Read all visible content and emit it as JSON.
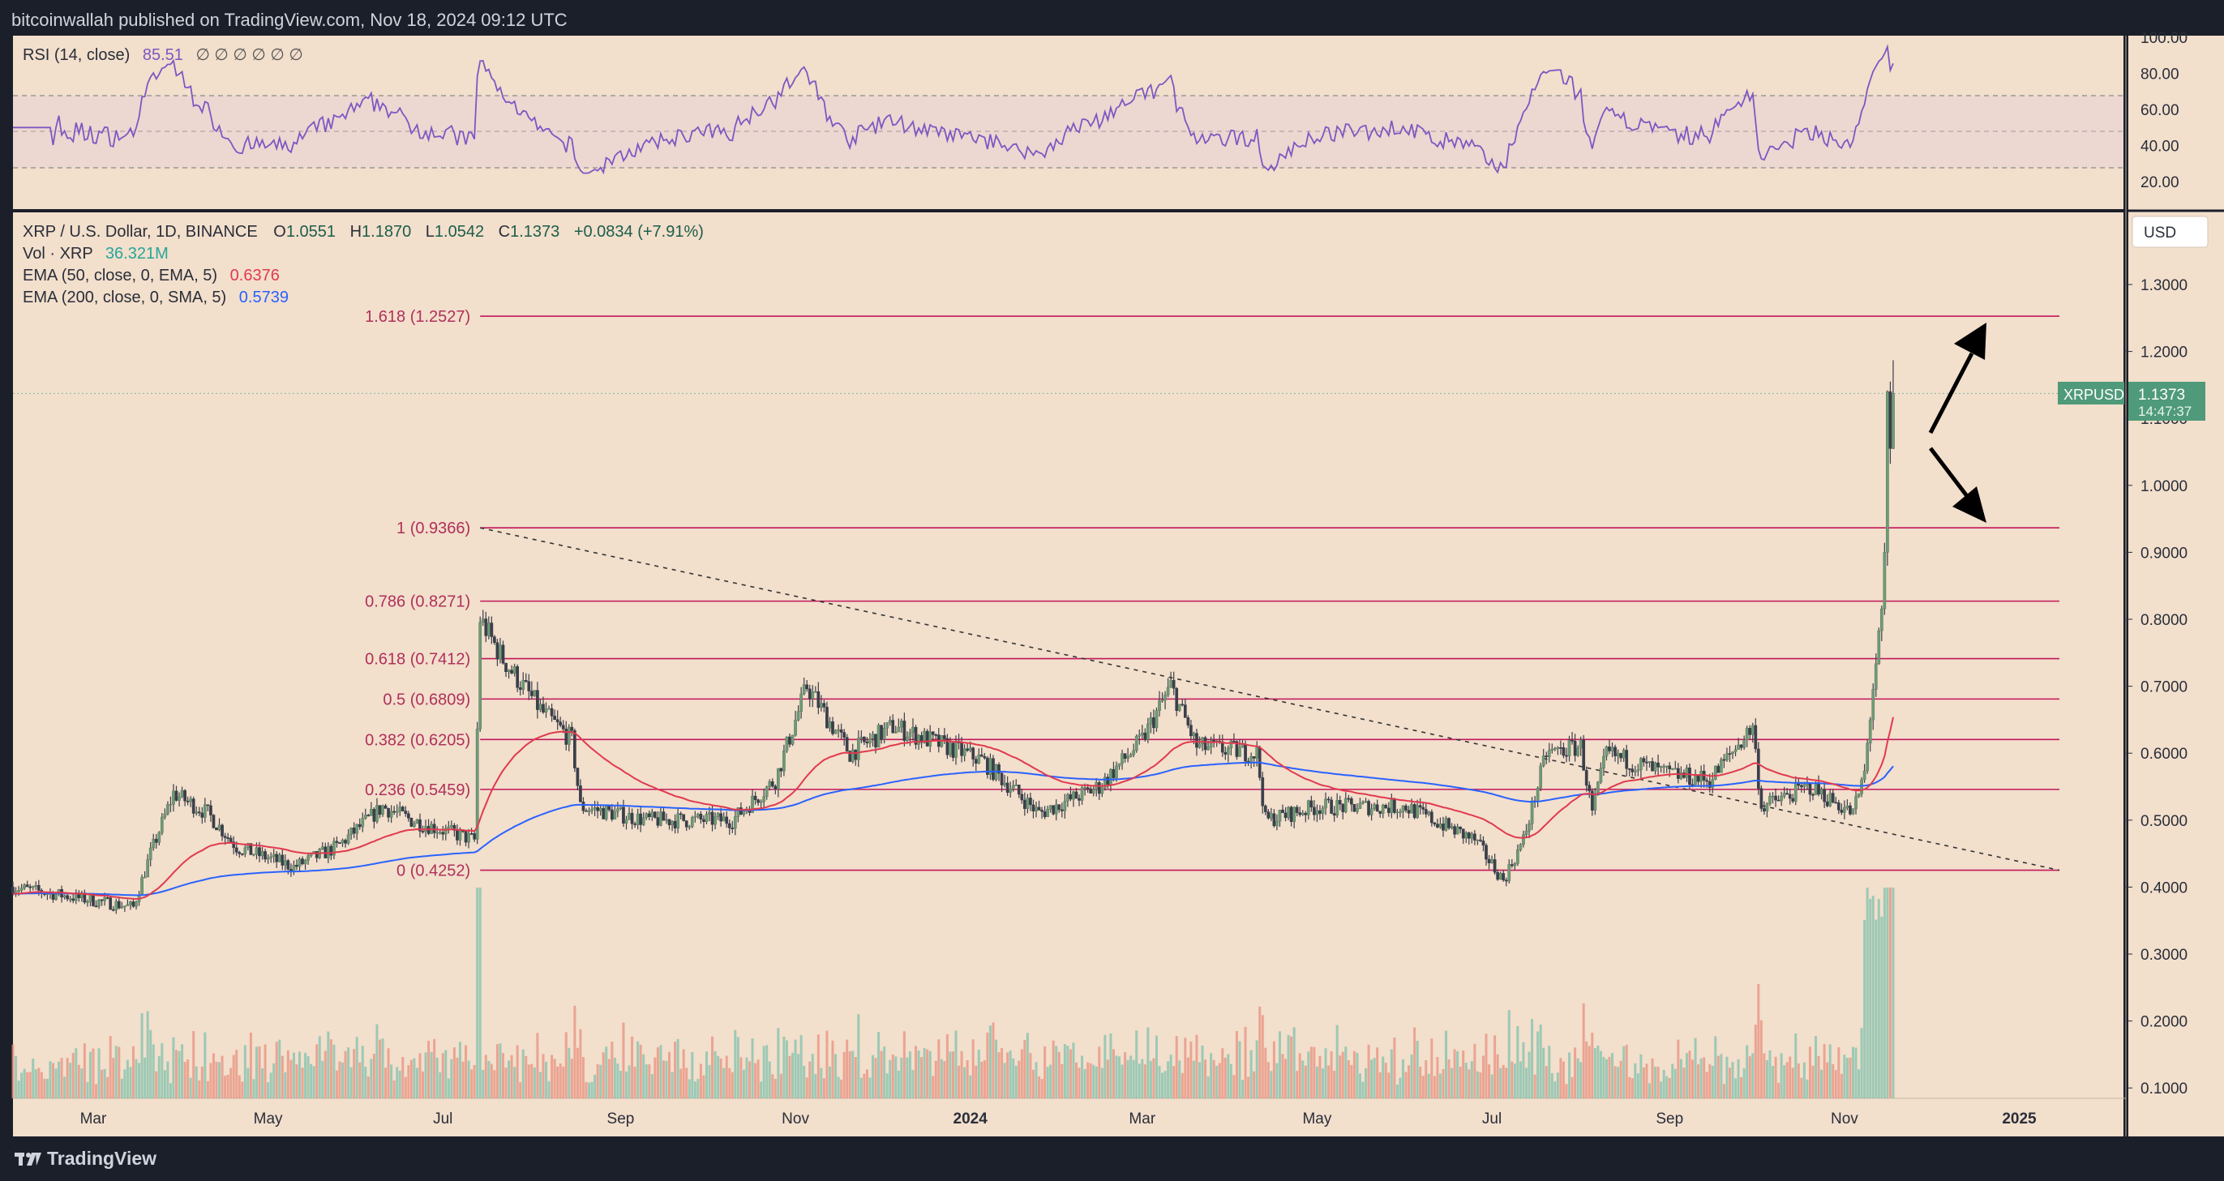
{
  "header": {
    "text": "bitcoinwallah published on TradingView.com, Nov 18, 2024 09:12 UTC"
  },
  "footer": {
    "brand": "TradingView"
  },
  "colors": {
    "background": "#f2dfcc",
    "rsi_line": "#7e57c2",
    "ema50": "#e03a4e",
    "ema200": "#2962ff",
    "fib": "#c2185b",
    "up": "#26a69a",
    "down": "#ef5350",
    "price_label": "#4f9a7a"
  },
  "rsi": {
    "label": "RSI (14, close)",
    "value": "85.51",
    "placeholders": "∅ ∅ ∅ ∅ ∅ ∅",
    "axis_ticks": [
      "100.00",
      "80.00",
      "60.00",
      "40.00",
      "20.00"
    ]
  },
  "legend": {
    "title": "XRP / U.S. Dollar, 1D, BINANCE",
    "ohlc": [
      {
        "key": "O",
        "value": "1.0551"
      },
      {
        "key": "H",
        "value": "1.1870"
      },
      {
        "key": "L",
        "value": "1.0542"
      },
      {
        "key": "C",
        "value": "1.1373"
      }
    ],
    "change": "+0.0834 (+7.91%)",
    "vol_label": "Vol · XRP",
    "vol_value": "36.321M",
    "ema50_label": "EMA (50, close, 0, EMA, 5)",
    "ema50_value": "0.6376",
    "ema200_label": "EMA (200, close, 0, SMA, 5)",
    "ema200_value": "0.5739"
  },
  "price_axis": {
    "currency": "USD",
    "ticks": [
      "1.3000",
      "1.2000",
      "1.1000",
      "1.0000",
      "0.9000",
      "0.8000",
      "0.7000",
      "0.6000",
      "0.5000",
      "0.4000",
      "0.3000",
      "0.2000",
      "0.1000"
    ]
  },
  "price_label": {
    "symbol": "XRPUSD",
    "price": "1.1373",
    "countdown": "14:47:37"
  },
  "time_axis": {
    "labels": [
      "Mar",
      "May",
      "Jul",
      "Sep",
      "Nov",
      "2024",
      "Mar",
      "May",
      "Jul",
      "Sep",
      "Nov",
      "2025"
    ]
  },
  "chart_data": {
    "type": "candlestick",
    "symbol": "XRP / U.S. Dollar, 1D, BINANCE",
    "last": {
      "open": 1.0551,
      "high": 1.187,
      "low": 1.0542,
      "close": 1.1373
    },
    "fib_levels": [
      {
        "label": "1.618 (1.2527)",
        "ratio": 1.618,
        "price": 1.2527
      },
      {
        "label": "1 (0.9366)",
        "ratio": 1,
        "price": 0.9366
      },
      {
        "label": "0.786 (0.8271)",
        "ratio": 0.786,
        "price": 0.8271
      },
      {
        "label": "0.618 (0.7412)",
        "ratio": 0.618,
        "price": 0.7412
      },
      {
        "label": "0.5 (0.6809)",
        "ratio": 0.5,
        "price": 0.6809
      },
      {
        "label": "0.382 (0.6205)",
        "ratio": 0.382,
        "price": 0.6205
      },
      {
        "label": "0.236 (0.5459)",
        "ratio": 0.236,
        "price": 0.5459
      },
      {
        "label": "0 (0.4252)",
        "ratio": 0,
        "price": 0.4252
      }
    ],
    "price_path": [
      {
        "date": "2023-02-01",
        "price": 0.4
      },
      {
        "date": "2023-02-15",
        "price": 0.39
      },
      {
        "date": "2023-03-01",
        "price": 0.38
      },
      {
        "date": "2023-03-15",
        "price": 0.37
      },
      {
        "date": "2023-03-21",
        "price": 0.45
      },
      {
        "date": "2023-03-29",
        "price": 0.54
      },
      {
        "date": "2023-04-10",
        "price": 0.51
      },
      {
        "date": "2023-04-20",
        "price": 0.46
      },
      {
        "date": "2023-05-10",
        "price": 0.43
      },
      {
        "date": "2023-05-25",
        "price": 0.46
      },
      {
        "date": "2023-06-10",
        "price": 0.52
      },
      {
        "date": "2023-06-20",
        "price": 0.5
      },
      {
        "date": "2023-07-12",
        "price": 0.47
      },
      {
        "date": "2023-07-14",
        "price": 0.8
      },
      {
        "date": "2023-07-22",
        "price": 0.74
      },
      {
        "date": "2023-08-05",
        "price": 0.66
      },
      {
        "date": "2023-08-15",
        "price": 0.62
      },
      {
        "date": "2023-08-18",
        "price": 0.52
      },
      {
        "date": "2023-09-10",
        "price": 0.5
      },
      {
        "date": "2023-10-10",
        "price": 0.5
      },
      {
        "date": "2023-10-25",
        "price": 0.56
      },
      {
        "date": "2023-11-05",
        "price": 0.7
      },
      {
        "date": "2023-11-20",
        "price": 0.6
      },
      {
        "date": "2023-12-05",
        "price": 0.64
      },
      {
        "date": "2024-01-05",
        "price": 0.59
      },
      {
        "date": "2024-01-25",
        "price": 0.51
      },
      {
        "date": "2024-02-15",
        "price": 0.55
      },
      {
        "date": "2024-03-01",
        "price": 0.62
      },
      {
        "date": "2024-03-11",
        "price": 0.7
      },
      {
        "date": "2024-03-20",
        "price": 0.61
      },
      {
        "date": "2024-04-10",
        "price": 0.6
      },
      {
        "date": "2024-04-13",
        "price": 0.5
      },
      {
        "date": "2024-05-01",
        "price": 0.52
      },
      {
        "date": "2024-06-01",
        "price": 0.52
      },
      {
        "date": "2024-06-25",
        "price": 0.47
      },
      {
        "date": "2024-07-05",
        "price": 0.41
      },
      {
        "date": "2024-07-12",
        "price": 0.47
      },
      {
        "date": "2024-07-20",
        "price": 0.6
      },
      {
        "date": "2024-08-01",
        "price": 0.61
      },
      {
        "date": "2024-08-05",
        "price": 0.51
      },
      {
        "date": "2024-08-10",
        "price": 0.6
      },
      {
        "date": "2024-08-30",
        "price": 0.57
      },
      {
        "date": "2024-09-15",
        "price": 0.56
      },
      {
        "date": "2024-09-30",
        "price": 0.64
      },
      {
        "date": "2024-10-03",
        "price": 0.52
      },
      {
        "date": "2024-10-20",
        "price": 0.55
      },
      {
        "date": "2024-11-04",
        "price": 0.51
      },
      {
        "date": "2024-11-08",
        "price": 0.57
      },
      {
        "date": "2024-11-11",
        "price": 0.7
      },
      {
        "date": "2024-11-14",
        "price": 0.8
      },
      {
        "date": "2024-11-15",
        "price": 0.9
      },
      {
        "date": "2024-11-16",
        "price": 1.14
      },
      {
        "date": "2024-11-17",
        "price": 1.055
      },
      {
        "date": "2024-11-18",
        "price": 1.1373
      }
    ],
    "trendline": {
      "start": {
        "date": "2023-07-14",
        "price": 0.9366
      },
      "end": {
        "date": "2025-01-15",
        "price": 0.4252
      }
    },
    "projection": [
      "up toward 1.2527",
      "down toward 0.9366"
    ]
  }
}
